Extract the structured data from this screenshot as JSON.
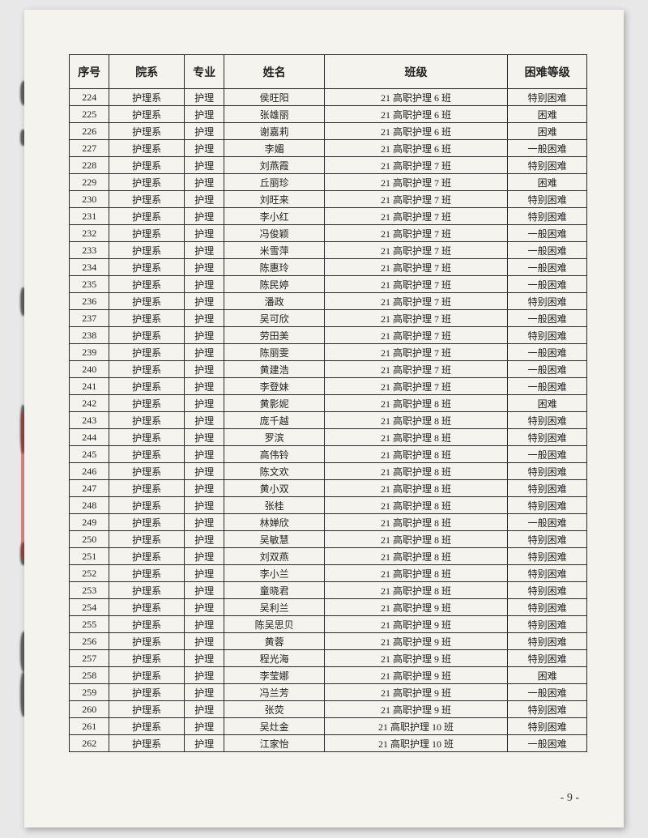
{
  "headers": {
    "seq": "序号",
    "dept": "院系",
    "major": "专业",
    "name": "姓名",
    "class": "班级",
    "level": "困难等级"
  },
  "rows": [
    {
      "seq": "224",
      "dept": "护理系",
      "major": "护理",
      "name": "侯旺阳",
      "class": "21 高职护理 6 班",
      "level": "特别困难"
    },
    {
      "seq": "225",
      "dept": "护理系",
      "major": "护理",
      "name": "张雄丽",
      "class": "21 高职护理 6 班",
      "level": "困难"
    },
    {
      "seq": "226",
      "dept": "护理系",
      "major": "护理",
      "name": "谢嘉莉",
      "class": "21 高职护理 6 班",
      "level": "困难"
    },
    {
      "seq": "227",
      "dept": "护理系",
      "major": "护理",
      "name": "李媚",
      "class": "21 高职护理 6 班",
      "level": "一般困难"
    },
    {
      "seq": "228",
      "dept": "护理系",
      "major": "护理",
      "name": "刘燕霞",
      "class": "21 高职护理 7 班",
      "level": "特别困难"
    },
    {
      "seq": "229",
      "dept": "护理系",
      "major": "护理",
      "name": "丘丽珍",
      "class": "21 高职护理 7 班",
      "level": "困难"
    },
    {
      "seq": "230",
      "dept": "护理系",
      "major": "护理",
      "name": "刘旺来",
      "class": "21 高职护理 7 班",
      "level": "特别困难"
    },
    {
      "seq": "231",
      "dept": "护理系",
      "major": "护理",
      "name": "李小红",
      "class": "21 高职护理 7 班",
      "level": "特别困难"
    },
    {
      "seq": "232",
      "dept": "护理系",
      "major": "护理",
      "name": "冯俊颖",
      "class": "21 高职护理 7 班",
      "level": "一般困难"
    },
    {
      "seq": "233",
      "dept": "护理系",
      "major": "护理",
      "name": "米雪萍",
      "class": "21 高职护理 7 班",
      "level": "一般困难"
    },
    {
      "seq": "234",
      "dept": "护理系",
      "major": "护理",
      "name": "陈惠玲",
      "class": "21 高职护理 7 班",
      "level": "一般困难"
    },
    {
      "seq": "235",
      "dept": "护理系",
      "major": "护理",
      "name": "陈民婷",
      "class": "21 高职护理 7 班",
      "level": "一般困难"
    },
    {
      "seq": "236",
      "dept": "护理系",
      "major": "护理",
      "name": "潘政",
      "class": "21 高职护理 7 班",
      "level": "特别困难"
    },
    {
      "seq": "237",
      "dept": "护理系",
      "major": "护理",
      "name": "吴可欣",
      "class": "21 高职护理 7 班",
      "level": "一般困难"
    },
    {
      "seq": "238",
      "dept": "护理系",
      "major": "护理",
      "name": "劳田美",
      "class": "21 高职护理 7 班",
      "level": "特别困难"
    },
    {
      "seq": "239",
      "dept": "护理系",
      "major": "护理",
      "name": "陈丽雯",
      "class": "21 高职护理 7 班",
      "level": "一般困难"
    },
    {
      "seq": "240",
      "dept": "护理系",
      "major": "护理",
      "name": "黄建浩",
      "class": "21 高职护理 7 班",
      "level": "一般困难"
    },
    {
      "seq": "241",
      "dept": "护理系",
      "major": "护理",
      "name": "李登妹",
      "class": "21 高职护理 7 班",
      "level": "一般困难"
    },
    {
      "seq": "242",
      "dept": "护理系",
      "major": "护理",
      "name": "黄影妮",
      "class": "21 高职护理 8 班",
      "level": "困难"
    },
    {
      "seq": "243",
      "dept": "护理系",
      "major": "护理",
      "name": "庞千越",
      "class": "21 高职护理 8 班",
      "level": "特别困难"
    },
    {
      "seq": "244",
      "dept": "护理系",
      "major": "护理",
      "name": "罗滨",
      "class": "21 高职护理 8 班",
      "level": "特别困难"
    },
    {
      "seq": "245",
      "dept": "护理系",
      "major": "护理",
      "name": "高伟铃",
      "class": "21 高职护理 8 班",
      "level": "一般困难"
    },
    {
      "seq": "246",
      "dept": "护理系",
      "major": "护理",
      "name": "陈文欢",
      "class": "21 高职护理 8 班",
      "level": "特别困难"
    },
    {
      "seq": "247",
      "dept": "护理系",
      "major": "护理",
      "name": "黄小双",
      "class": "21 高职护理 8 班",
      "level": "特别困难"
    },
    {
      "seq": "248",
      "dept": "护理系",
      "major": "护理",
      "name": "张桂",
      "class": "21 高职护理 8 班",
      "level": "特别困难"
    },
    {
      "seq": "249",
      "dept": "护理系",
      "major": "护理",
      "name": "林婵欣",
      "class": "21 高职护理 8 班",
      "level": "一般困难"
    },
    {
      "seq": "250",
      "dept": "护理系",
      "major": "护理",
      "name": "吴敏慧",
      "class": "21 高职护理 8 班",
      "level": "特别困难"
    },
    {
      "seq": "251",
      "dept": "护理系",
      "major": "护理",
      "name": "刘双燕",
      "class": "21 高职护理 8 班",
      "level": "特别困难"
    },
    {
      "seq": "252",
      "dept": "护理系",
      "major": "护理",
      "name": "李小兰",
      "class": "21 高职护理 8 班",
      "level": "特别困难"
    },
    {
      "seq": "253",
      "dept": "护理系",
      "major": "护理",
      "name": "童晓君",
      "class": "21 高职护理 8 班",
      "level": "特别困难"
    },
    {
      "seq": "254",
      "dept": "护理系",
      "major": "护理",
      "name": "吴利兰",
      "class": "21 高职护理 9 班",
      "level": "特别困难"
    },
    {
      "seq": "255",
      "dept": "护理系",
      "major": "护理",
      "name": "陈吴思贝",
      "class": "21 高职护理 9 班",
      "level": "特别困难"
    },
    {
      "seq": "256",
      "dept": "护理系",
      "major": "护理",
      "name": "黄蓉",
      "class": "21 高职护理 9 班",
      "level": "特别困难"
    },
    {
      "seq": "257",
      "dept": "护理系",
      "major": "护理",
      "name": "程光海",
      "class": "21 高职护理 9 班",
      "level": "特别困难"
    },
    {
      "seq": "258",
      "dept": "护理系",
      "major": "护理",
      "name": "李莹娜",
      "class": "21 高职护理 9 班",
      "level": "困难"
    },
    {
      "seq": "259",
      "dept": "护理系",
      "major": "护理",
      "name": "冯兰芳",
      "class": "21 高职护理 9 班",
      "level": "一般困难"
    },
    {
      "seq": "260",
      "dept": "护理系",
      "major": "护理",
      "name": "张荧",
      "class": "21 高职护理 9 班",
      "level": "特别困难"
    },
    {
      "seq": "261",
      "dept": "护理系",
      "major": "护理",
      "name": "吴灶金",
      "class": "21 高职护理 10 班",
      "level": "特别困难"
    },
    {
      "seq": "262",
      "dept": "护理系",
      "major": "护理",
      "name": "江家怡",
      "class": "21 高职护理 10 班",
      "level": "一般困难"
    }
  ],
  "pageNumber": "- 9 -"
}
